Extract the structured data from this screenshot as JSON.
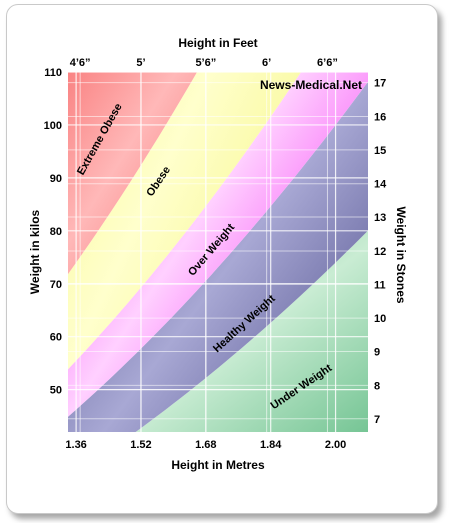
{
  "chart_data": {
    "type": "area",
    "title": "Height in Feet",
    "xlabel": "Height in Metres",
    "ylabel": "Weight in kilos",
    "y2label": "Weight in Stones",
    "watermark": "News-Medical.Net",
    "x_range": [
      1.34,
      2.08
    ],
    "y_range": [
      42,
      110
    ],
    "x_ticks": [
      {
        "value": 1.36,
        "label": "1.36"
      },
      {
        "value": 1.52,
        "label": "1.52"
      },
      {
        "value": 1.68,
        "label": "1.68"
      },
      {
        "value": 1.84,
        "label": "1.84"
      },
      {
        "value": 2.0,
        "label": "2.00"
      }
    ],
    "x_ticks_top": [
      {
        "value": 1.37,
        "label": "4’6”"
      },
      {
        "value": 1.52,
        "label": "5’"
      },
      {
        "value": 1.68,
        "label": "5’6”"
      },
      {
        "value": 1.83,
        "label": "6’"
      },
      {
        "value": 1.98,
        "label": "6’6”"
      }
    ],
    "y_ticks": [
      {
        "value": 50,
        "label": "50"
      },
      {
        "value": 60,
        "label": "60"
      },
      {
        "value": 70,
        "label": "70"
      },
      {
        "value": 80,
        "label": "80"
      },
      {
        "value": 90,
        "label": "90"
      },
      {
        "value": 100,
        "label": "100"
      },
      {
        "value": 110,
        "label": "110"
      }
    ],
    "y_ticks_right": [
      {
        "value": 44.5,
        "label": "7"
      },
      {
        "value": 50.8,
        "label": "8"
      },
      {
        "value": 57.2,
        "label": "9"
      },
      {
        "value": 63.5,
        "label": "10"
      },
      {
        "value": 69.9,
        "label": "11"
      },
      {
        "value": 76.2,
        "label": "12"
      },
      {
        "value": 82.6,
        "label": "13"
      },
      {
        "value": 88.9,
        "label": "14"
      },
      {
        "value": 95.3,
        "label": "15"
      },
      {
        "value": 101.6,
        "label": "16"
      },
      {
        "value": 108.0,
        "label": "17"
      }
    ],
    "boundaries_bmi": [
      18.5,
      25,
      30,
      40
    ],
    "bands": [
      {
        "name": "Under Weight",
        "bmi_range": [
          0,
          18.5
        ],
        "color_edge": "#5ab880",
        "color_center": "#c9ecd3",
        "label_at": {
          "x": 1.92,
          "y": 50
        }
      },
      {
        "name": "Healthy Weight",
        "bmi_range": [
          18.5,
          25
        ],
        "color_edge": "#3c3c7c",
        "color_center": "#a8a8d4",
        "label_at": {
          "x": 1.78,
          "y": 62
        }
      },
      {
        "name": "Over Weight",
        "bmi_range": [
          25,
          30
        ],
        "color_edge": "#ee00ee",
        "color_center": "#ffd0ff",
        "label_at": {
          "x": 1.7,
          "y": 76
        }
      },
      {
        "name": "Obese",
        "bmi_range": [
          30,
          40
        ],
        "color_edge": "#f0f060",
        "color_center": "#ffffcc",
        "label_at": {
          "x": 1.57,
          "y": 89
        }
      },
      {
        "name": "Extreme Obese",
        "bmi_range": [
          40,
          1000
        ],
        "color_edge": "#ee1111",
        "color_center": "#ffb8b8",
        "label_at": {
          "x": 1.425,
          "y": 97
        }
      }
    ],
    "grid": true
  }
}
